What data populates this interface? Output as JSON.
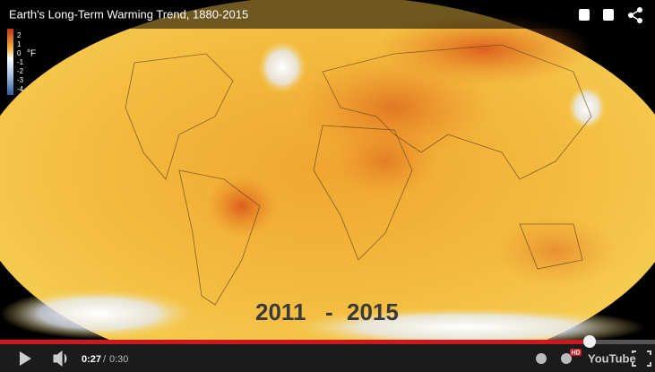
{
  "video": {
    "title": "Earth's Long-Term Warming Trend, 1880-2015",
    "legend": {
      "unit": "°F",
      "ticks": [
        "2",
        "1",
        "0",
        "-1",
        "-2",
        "-3",
        "-4"
      ]
    },
    "overlay": {
      "start": "2011",
      "dash": "-",
      "end": "2015"
    },
    "controls": {
      "current_time": "0:27",
      "separator": "/",
      "duration": "0:30",
      "hd_badge": "HD",
      "logo": "YouTube"
    }
  }
}
